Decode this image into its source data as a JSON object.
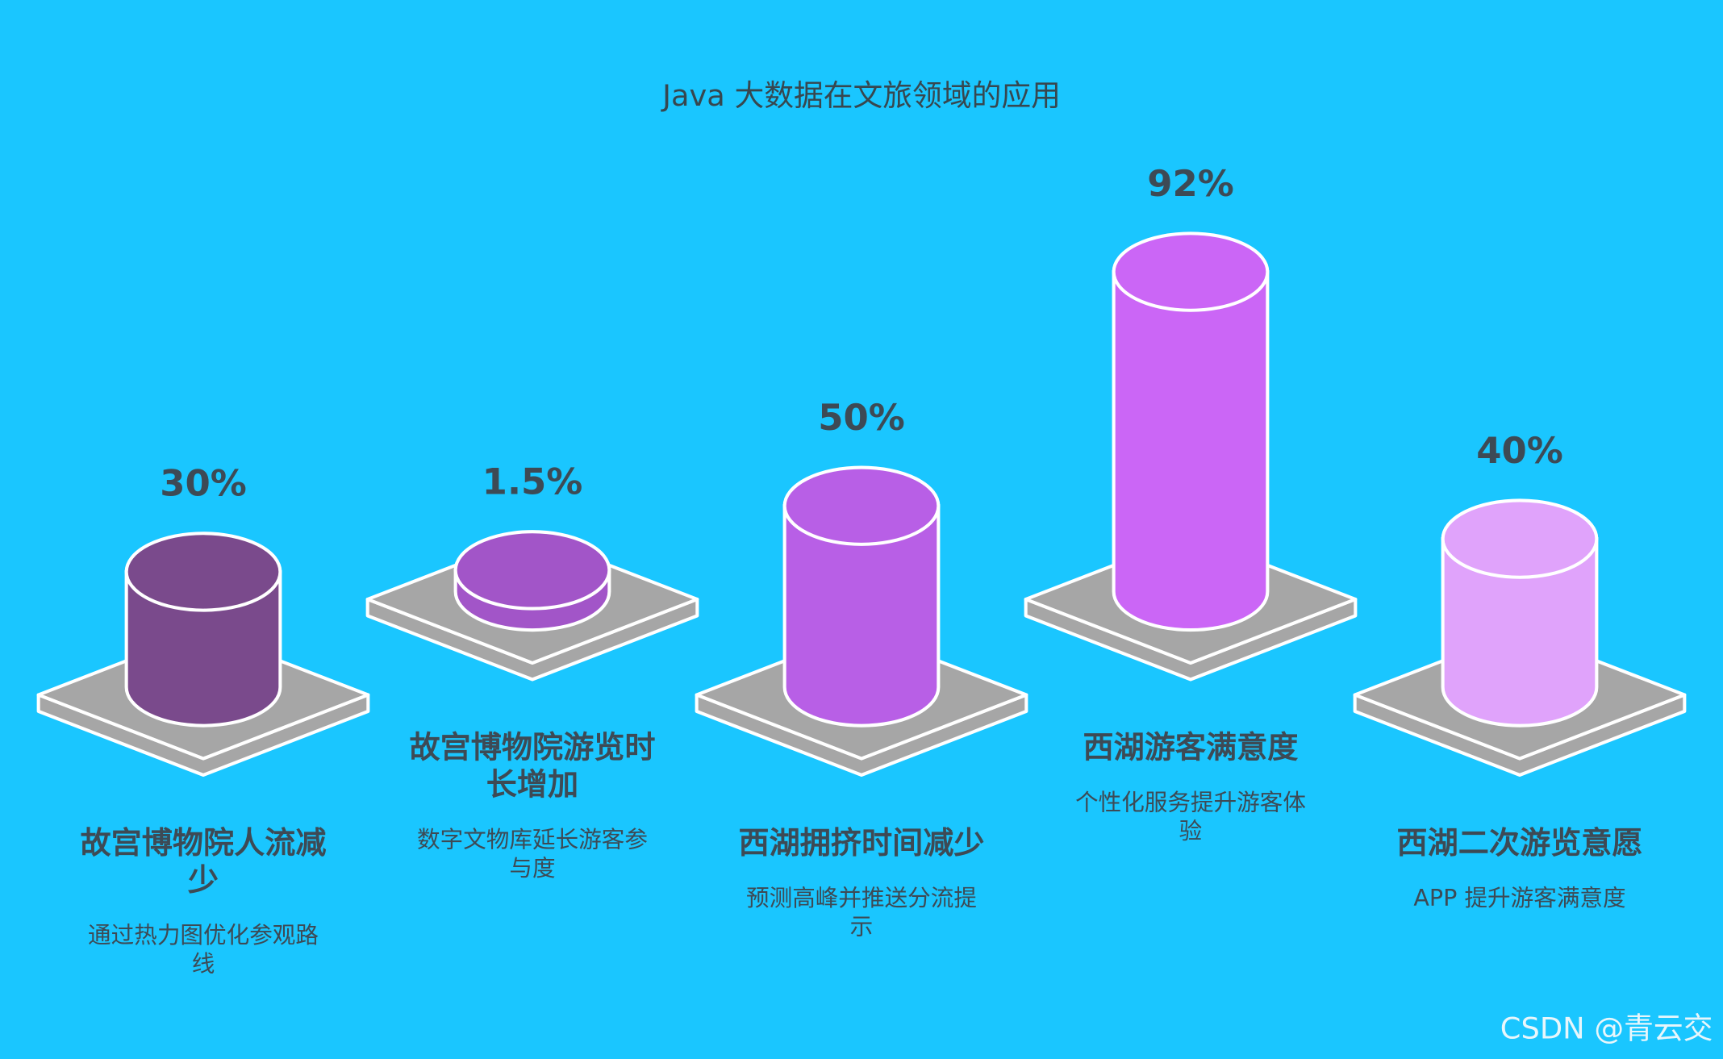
{
  "chart_data": {
    "type": "cylinder",
    "title": "Java 大数据在文旅领域的应用",
    "categories": [
      "故宫博物院人流减少",
      "故宫博物院游览时长增加",
      "西湖拥挤时间减少",
      "西湖游客满意度",
      "西湖二次游览意愿"
    ],
    "descriptions": [
      "通过热力图优化参观路线",
      "数字文物库延长游客参与度",
      "预测高峰并推送分流提示",
      "个性化服务提升游客体验",
      "APP 提升游客满意度"
    ],
    "values": [
      30,
      1.5,
      50,
      92,
      40
    ],
    "value_labels": [
      "30%",
      "1.5%",
      "50%",
      "92%",
      "40%"
    ],
    "colors": [
      "#7a4a8c",
      "#a255c8",
      "#b85fe6",
      "#cb66f6",
      "#e0a3fb"
    ],
    "watermark": "CSDN @青云交"
  }
}
